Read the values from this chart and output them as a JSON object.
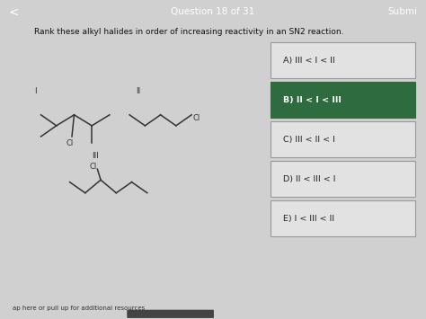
{
  "title": "Question 18 of 31",
  "submit_text": "Submi",
  "header_color": "#b5281c",
  "header_text_color": "#ffffff",
  "bg_color": "#d0d0d0",
  "question_text": "Rank these alkyl halides in order of increasing reactivity in an SN2 reaction.",
  "footer_text": "ap here or pull up for additional resources",
  "answer_choices": [
    "A) III < I < II",
    "B) II < I < III",
    "C) III < II < I",
    "D) II < III < I",
    "E) I < III < II"
  ],
  "highlighted_answer_index": 1,
  "highlight_color": "#2e6b3e",
  "highlight_border_color": "#2e6b3e",
  "answer_box_color": "#e2e2e2",
  "answer_box_border": "#999999",
  "answer_text_color": "#222222",
  "highlight_text_color": "#ffffff",
  "mol_box_bg": "#e8e8e8",
  "mol_box_border": "#aaaaaa",
  "line_color": "#333333"
}
